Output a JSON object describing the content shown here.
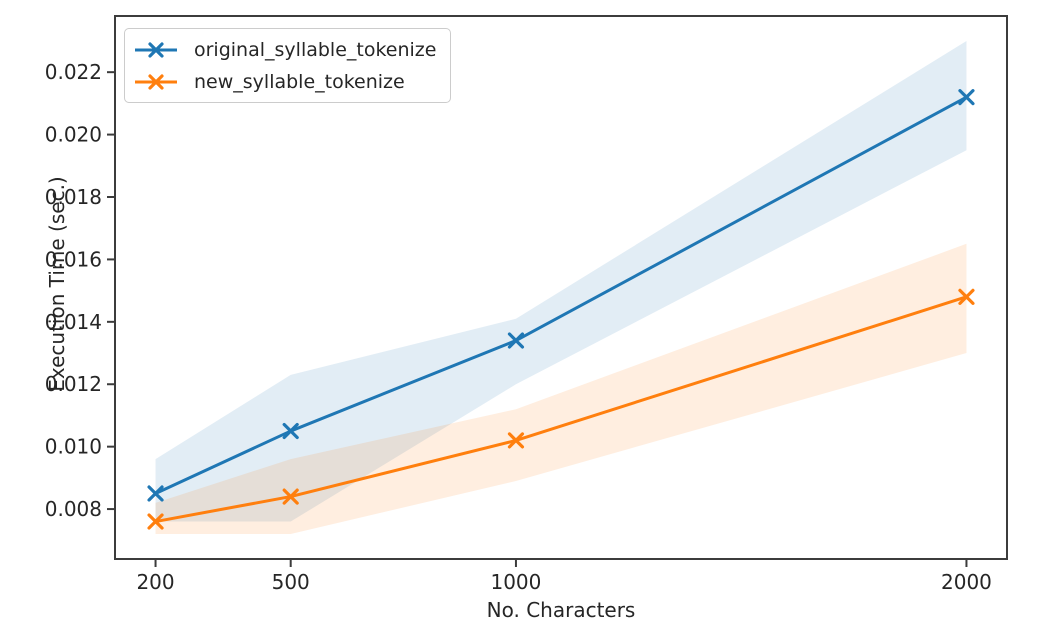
{
  "chart_data": {
    "type": "line",
    "title": "",
    "xlabel": "No. Characters",
    "ylabel": "Execution Time (sec.)",
    "x": [
      200,
      500,
      1000,
      2000
    ],
    "xtick_labels": [
      "200",
      "500",
      "1000",
      "2000"
    ],
    "yticks": [
      0.008,
      0.01,
      0.012,
      0.014,
      0.016,
      0.018,
      0.02,
      0.022
    ],
    "ytick_labels": [
      "0.008",
      "0.010",
      "0.012",
      "0.014",
      "0.016",
      "0.018",
      "0.020",
      "0.022"
    ],
    "xlim": [
      110,
      2090
    ],
    "ylim": [
      0.0064,
      0.0238
    ],
    "grid": false,
    "legend_position": "upper-left",
    "band_alpha": 0.13,
    "axis_color": "#3c3c3c",
    "text_color": "#262626",
    "background_color": "#ffffff",
    "series": [
      {
        "name": "original_syllable_tokenize",
        "color": "#1f77b4",
        "marker": "x",
        "values": [
          0.0085,
          0.0105,
          0.0134,
          0.0212
        ],
        "band_lower": [
          0.0076,
          0.0076,
          0.012,
          0.0195
        ],
        "band_upper": [
          0.0096,
          0.0123,
          0.0141,
          0.023
        ]
      },
      {
        "name": "new_syllable_tokenize",
        "color": "#ff7f0e",
        "marker": "x",
        "values": [
          0.0076,
          0.0084,
          0.0102,
          0.0148
        ],
        "band_lower": [
          0.0072,
          0.0072,
          0.0089,
          0.013
        ],
        "band_upper": [
          0.0082,
          0.0096,
          0.0112,
          0.0165
        ]
      }
    ]
  }
}
